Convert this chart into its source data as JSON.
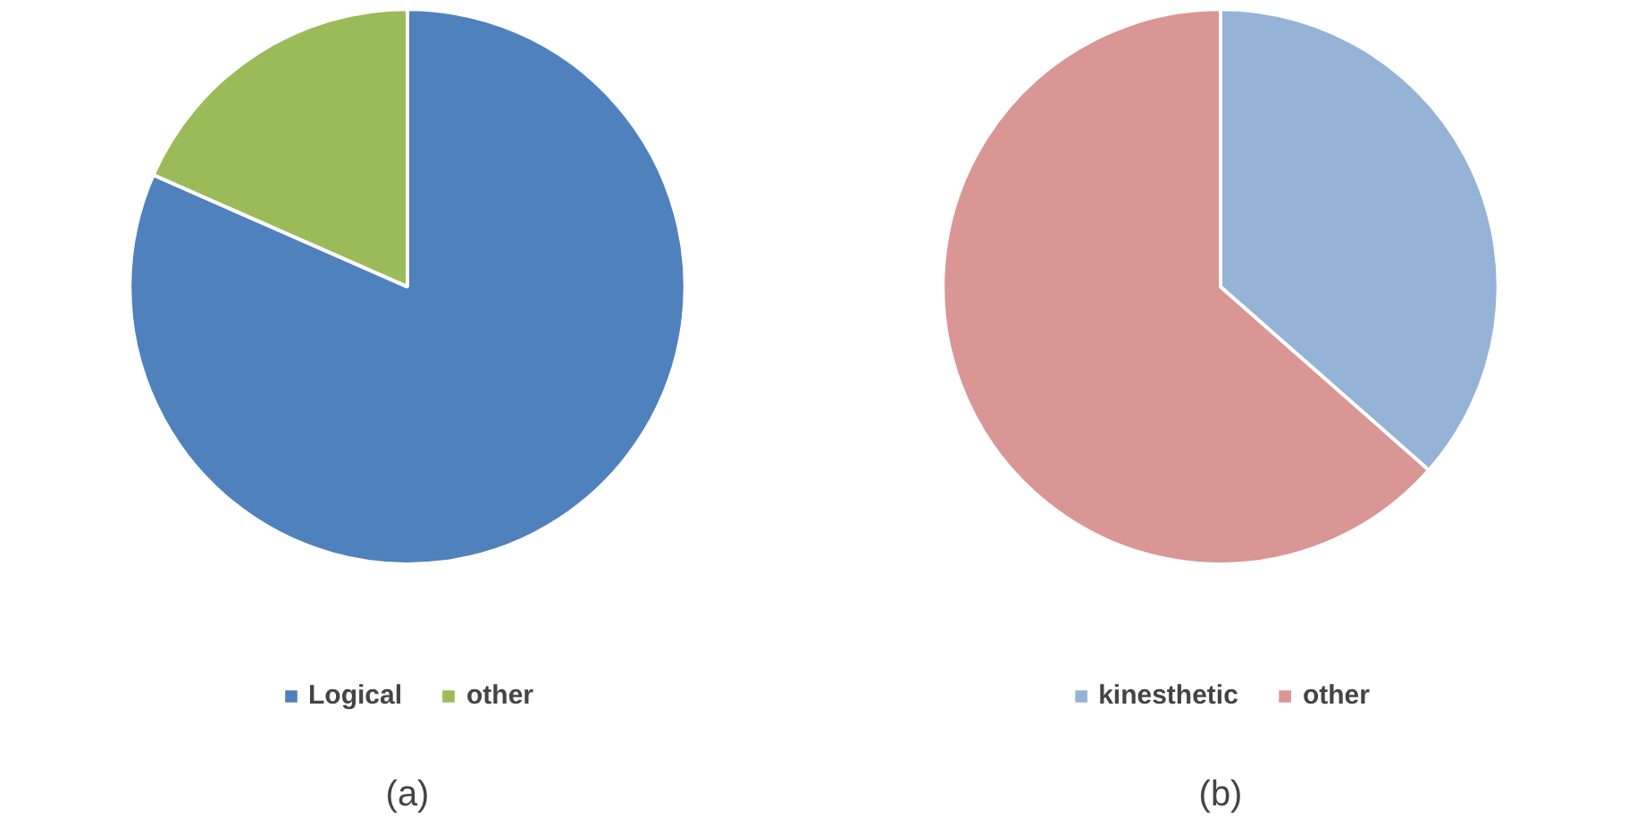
{
  "chart_data": [
    {
      "type": "pie",
      "categories": [
        "Logical",
        "other"
      ],
      "values": [
        81.6,
        18.4
      ],
      "colors": [
        "#4f81bd",
        "#9bbb59"
      ],
      "legend": "bottom",
      "annotations": [
        "(a)"
      ]
    },
    {
      "type": "pie",
      "categories": [
        "kinesthetic",
        "other"
      ],
      "values": [
        36.5,
        63.5
      ],
      "colors": [
        "#95b3d7",
        "#d99694"
      ],
      "legend": "bottom",
      "annotations": [
        "(b)"
      ]
    }
  ]
}
